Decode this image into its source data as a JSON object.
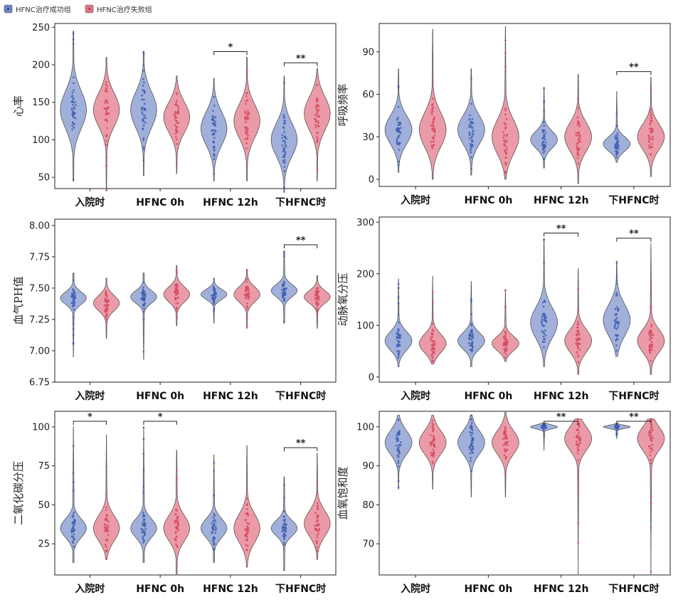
{
  "legend": {
    "placement": "top-left",
    "items": [
      {
        "label": "HFNC治疗成功组",
        "color": "#6f86c4"
      },
      {
        "label": "HFNC治疗失败组",
        "color": "#e07586"
      }
    ]
  },
  "colors": {
    "success_fill": "#8fa2d4",
    "success_dots": "#3f5db0",
    "failure_fill": "#e88a98",
    "failure_dots": "#d64a63"
  },
  "chart_data": [
    {
      "type": "violin",
      "ylabel": "心率",
      "ylim": [
        35,
        255
      ],
      "yticks": [
        50,
        100,
        150,
        200,
        250
      ],
      "categories": [
        "入院时",
        "HFNC 0h",
        "HFNC 12h",
        "下HFNC时"
      ],
      "series": [
        {
          "name": "HFNC治疗成功组",
          "values": [
            {
              "min": 45,
              "max": 245,
              "center": 140,
              "spread": 25
            },
            {
              "min": 52,
              "max": 218,
              "center": 140,
              "spread": 24
            },
            {
              "min": 45,
              "max": 182,
              "center": 115,
              "spread": 22
            },
            {
              "min": 30,
              "max": 185,
              "center": 100,
              "spread": 22
            }
          ]
        },
        {
          "name": "HFNC治疗失败组",
          "values": [
            {
              "min": 32,
              "max": 210,
              "center": 140,
              "spread": 22
            },
            {
              "min": 55,
              "max": 185,
              "center": 130,
              "spread": 20
            },
            {
              "min": 45,
              "max": 210,
              "center": 125,
              "spread": 22
            },
            {
              "min": 45,
              "max": 195,
              "center": 135,
              "spread": 22
            }
          ]
        }
      ],
      "significance": [
        {
          "category": "HFNC 12h",
          "label": "*"
        },
        {
          "category": "下HFNC时",
          "label": "**"
        }
      ]
    },
    {
      "type": "violin",
      "ylabel": "呼吸频率",
      "ylim": [
        -5,
        110
      ],
      "yticks": [
        0,
        30,
        60,
        90
      ],
      "categories": [
        "入院时",
        "HFNC 0h",
        "HFNC 12h",
        "下HFNC时"
      ],
      "series": [
        {
          "name": "HFNC治疗成功组",
          "values": [
            {
              "min": 5,
              "max": 78,
              "center": 35,
              "spread": 10
            },
            {
              "min": 3,
              "max": 78,
              "center": 35,
              "spread": 10
            },
            {
              "min": 8,
              "max": 65,
              "center": 28,
              "spread": 6
            },
            {
              "min": 12,
              "max": 62,
              "center": 25,
              "spread": 5
            }
          ]
        },
        {
          "name": "HFNC治疗失败组",
          "values": [
            {
              "min": 0,
              "max": 106,
              "center": 35,
              "spread": 12
            },
            {
              "min": 0,
              "max": 108,
              "center": 30,
              "spread": 12
            },
            {
              "min": -3,
              "max": 74,
              "center": 30,
              "spread": 10
            },
            {
              "min": 2,
              "max": 72,
              "center": 30,
              "spread": 9
            }
          ]
        }
      ],
      "significance": [
        {
          "category": "下HFNC时",
          "label": "**"
        }
      ]
    },
    {
      "type": "violin",
      "ylabel": "血气PH值",
      "ylim": [
        6.75,
        8.05
      ],
      "yticks": [
        6.75,
        7.0,
        7.25,
        7.5,
        7.75,
        8.0
      ],
      "ytickLabels": [
        "6.75",
        "7.00",
        "7.25",
        "7.50",
        "7.75",
        "8.00"
      ],
      "categories": [
        "入院时",
        "HFNC 0h",
        "HFNC 12h",
        "下HFNC时"
      ],
      "series": [
        {
          "name": "HFNC治疗成功组",
          "values": [
            {
              "min": 6.95,
              "max": 7.62,
              "center": 7.42,
              "spread": 0.05
            },
            {
              "min": 6.93,
              "max": 7.62,
              "center": 7.43,
              "spread": 0.05
            },
            {
              "min": 7.22,
              "max": 7.58,
              "center": 7.45,
              "spread": 0.04
            },
            {
              "min": 7.22,
              "max": 7.8,
              "center": 7.48,
              "spread": 0.05
            }
          ]
        },
        {
          "name": "HFNC治疗失败组",
          "values": [
            {
              "min": 7.1,
              "max": 7.58,
              "center": 7.38,
              "spread": 0.06
            },
            {
              "min": 7.2,
              "max": 7.68,
              "center": 7.45,
              "spread": 0.06
            },
            {
              "min": 7.18,
              "max": 7.65,
              "center": 7.45,
              "spread": 0.06
            },
            {
              "min": 7.18,
              "max": 7.6,
              "center": 7.43,
              "spread": 0.05
            }
          ]
        }
      ],
      "significance": [
        {
          "category": "下HFNC时",
          "label": "**"
        }
      ]
    },
    {
      "type": "violin",
      "ylabel": "动脉氧分压",
      "ylim": [
        -10,
        310
      ],
      "yticks": [
        0,
        100,
        200,
        300
      ],
      "categories": [
        "入院时",
        "HFNC 0h",
        "HFNC 12h",
        "下HFNC时"
      ],
      "series": [
        {
          "name": "HFNC治疗成功组",
          "values": [
            {
              "min": 20,
              "max": 190,
              "center": 70,
              "spread": 18
            },
            {
              "min": 20,
              "max": 185,
              "center": 70,
              "spread": 16
            },
            {
              "min": 20,
              "max": 268,
              "center": 105,
              "spread": 30
            },
            {
              "min": 40,
              "max": 225,
              "center": 110,
              "spread": 30
            }
          ]
        },
        {
          "name": "HFNC治疗失败组",
          "values": [
            {
              "min": 25,
              "max": 195,
              "center": 65,
              "spread": 18
            },
            {
              "min": 30,
              "max": 170,
              "center": 65,
              "spread": 14
            },
            {
              "min": 5,
              "max": 210,
              "center": 70,
              "spread": 22
            },
            {
              "min": 5,
              "max": 258,
              "center": 70,
              "spread": 22
            }
          ]
        }
      ],
      "significance": [
        {
          "category": "HFNC 12h",
          "label": "**"
        },
        {
          "category": "下HFNC时",
          "label": "**"
        }
      ]
    },
    {
      "type": "violin",
      "ylabel": "二氧化碳分压",
      "ylim": [
        5,
        110
      ],
      "yticks": [
        25,
        50,
        75,
        100
      ],
      "categories": [
        "入院时",
        "HFNC 0h",
        "HFNC 12h",
        "下HFNC时"
      ],
      "series": [
        {
          "name": "HFNC治疗成功组",
          "values": [
            {
              "min": 13,
              "max": 100,
              "center": 35,
              "spread": 6
            },
            {
              "min": 13,
              "max": 100,
              "center": 35,
              "spread": 6
            },
            {
              "min": 13,
              "max": 82,
              "center": 35,
              "spread": 6
            },
            {
              "min": 8,
              "max": 68,
              "center": 35,
              "spread": 5
            }
          ]
        },
        {
          "name": "HFNC治疗失败组",
          "values": [
            {
              "min": 15,
              "max": 95,
              "center": 35,
              "spread": 8
            },
            {
              "min": 5,
              "max": 85,
              "center": 35,
              "spread": 8
            },
            {
              "min": 10,
              "max": 88,
              "center": 35,
              "spread": 9
            },
            {
              "min": 15,
              "max": 83,
              "center": 38,
              "spread": 8
            }
          ]
        }
      ],
      "significance": [
        {
          "category": "入院时",
          "label": "*"
        },
        {
          "category": "HFNC 0h",
          "label": "*"
        },
        {
          "category": "下HFNC时",
          "label": "**"
        }
      ]
    },
    {
      "type": "violin",
      "ylabel": "血氧饱和度",
      "ylim": [
        62,
        104
      ],
      "yticks": [
        70,
        80,
        90,
        100
      ],
      "categories": [
        "入院时",
        "HFNC 0h",
        "HFNC 12h",
        "下HFNC时"
      ],
      "series": [
        {
          "name": "HFNC治疗成功组",
          "values": [
            {
              "min": 84,
              "max": 103,
              "center": 96,
              "spread": 3
            },
            {
              "min": 82,
              "max": 103,
              "center": 96,
              "spread": 3
            },
            {
              "min": 94,
              "max": 101,
              "center": 100,
              "spread": 0.5
            },
            {
              "min": 97,
              "max": 101,
              "center": 100,
              "spread": 0.4
            }
          ]
        },
        {
          "name": "HFNC治疗失败组",
          "values": [
            {
              "min": 84,
              "max": 103,
              "center": 96,
              "spread": 3
            },
            {
              "min": 82,
              "max": 104,
              "center": 96,
              "spread": 3
            },
            {
              "min": 62,
              "max": 102,
              "center": 97,
              "spread": 3
            },
            {
              "min": 62,
              "max": 102,
              "center": 97,
              "spread": 3
            }
          ]
        }
      ],
      "significance": [
        {
          "category": "HFNC 12h",
          "label": "**"
        },
        {
          "category": "下HFNC时",
          "label": "**"
        }
      ]
    }
  ]
}
